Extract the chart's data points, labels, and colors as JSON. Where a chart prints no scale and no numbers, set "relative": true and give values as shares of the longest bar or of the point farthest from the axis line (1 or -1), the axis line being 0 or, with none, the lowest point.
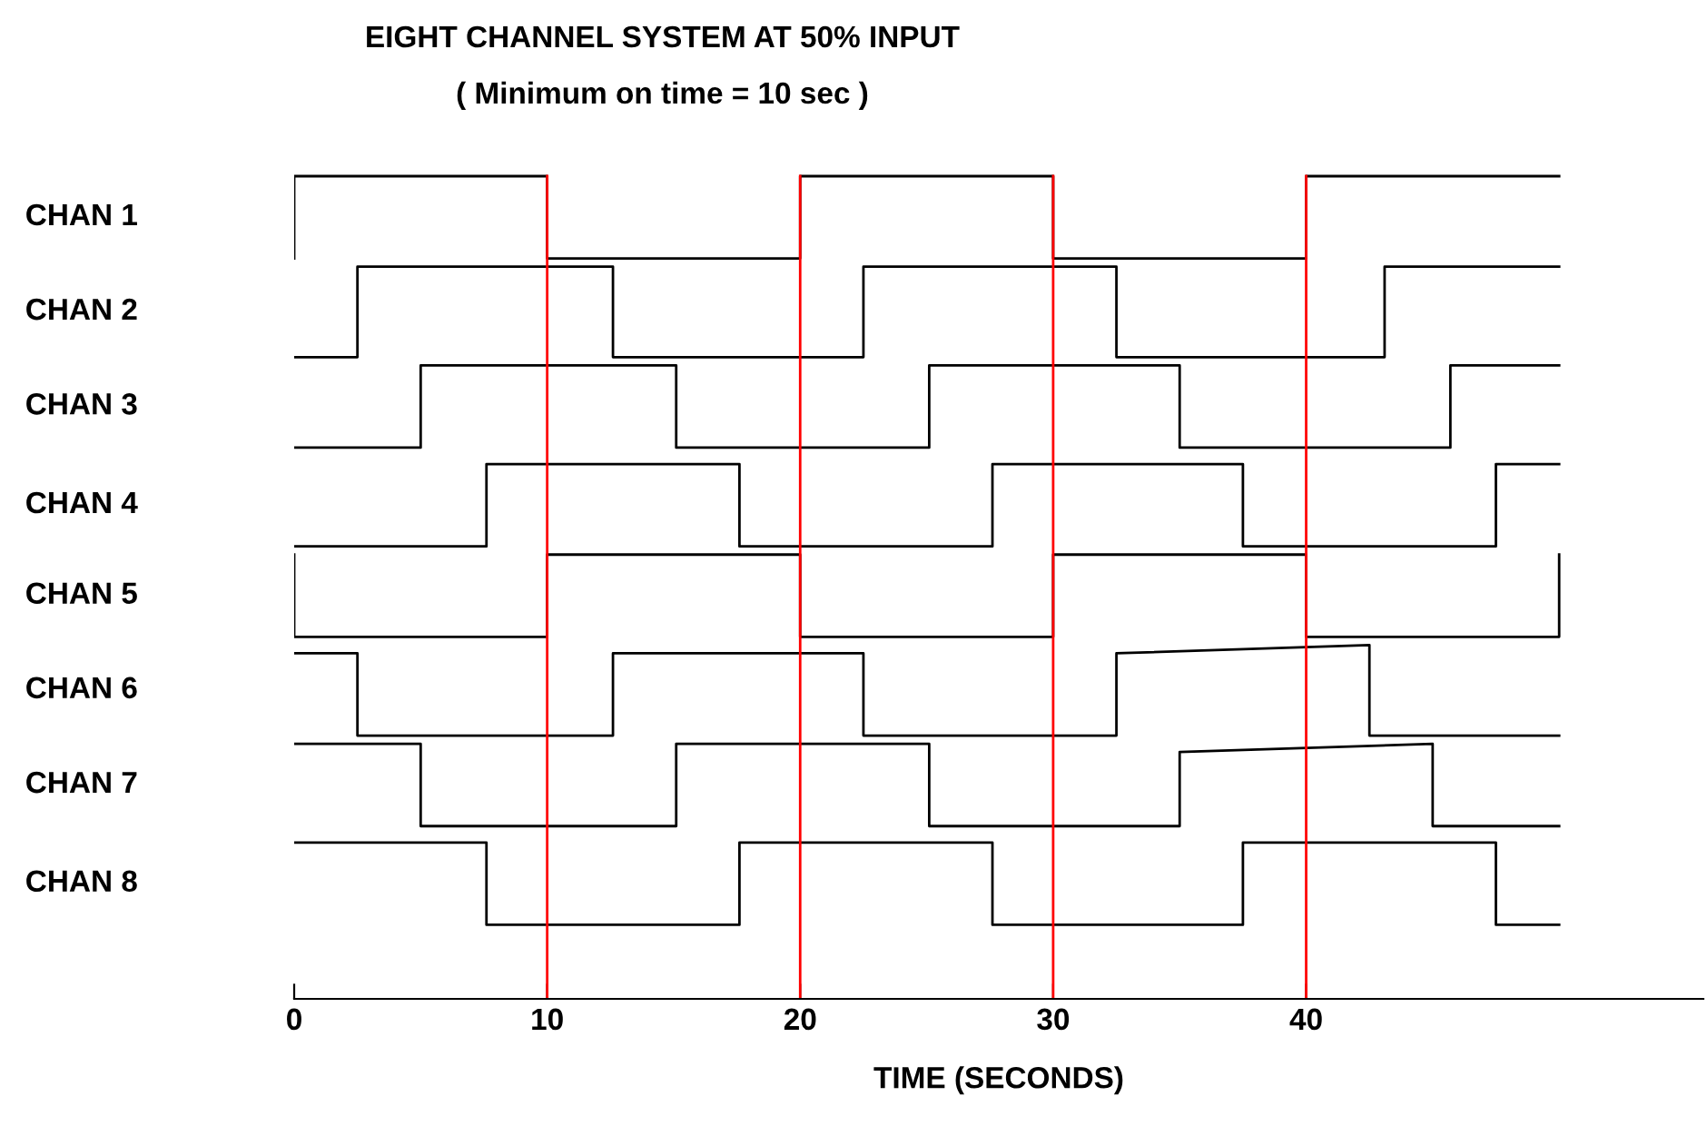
{
  "chart_data": {
    "type": "line",
    "relative": true,
    "title": "EIGHT CHANNEL SYSTEM AT 50% INPUT",
    "subtitle": "( Minimum on time = 10 sec )",
    "xlabel": "TIME (SECONDS)",
    "annotations": [
      "CHAN 1",
      "CHAN 2",
      "CHAN 3",
      "CHAN 4",
      "CHAN 5",
      "CHAN 6",
      "CHAN 7",
      "CHAN 8"
    ],
    "xlim": [
      0,
      55.7
    ],
    "xticks": [
      0,
      10,
      20,
      30,
      40
    ],
    "grid": false,
    "legend": false,
    "marker": "none",
    "line_style": "solid",
    "ref_lines": [
      {
        "axis": "x",
        "value": 10,
        "color": "#ff0000"
      },
      {
        "axis": "x",
        "value": 20,
        "color": "#ff0000"
      },
      {
        "axis": "x",
        "value": 30,
        "color": "#ff0000"
      },
      {
        "axis": "x",
        "value": 40,
        "color": "#ff0000"
      }
    ],
    "series": [
      {
        "color": "#000000",
        "x": [
          0,
          0,
          10,
          10,
          20,
          20,
          30,
          30,
          40,
          40,
          50
        ],
        "values": [
          0.9,
          1,
          1,
          0.9,
          0.9,
          1,
          1,
          0.9,
          0.9,
          1,
          1
        ]
      },
      {
        "color": "#000000",
        "x": [
          0,
          2.5,
          2.5,
          12.6,
          12.6,
          22.5,
          22.5,
          32.5,
          32.5,
          43.1,
          43.1,
          50
        ],
        "values": [
          0.78,
          0.78,
          0.89,
          0.89,
          0.78,
          0.78,
          0.89,
          0.89,
          0.78,
          0.78,
          0.89,
          0.89
        ]
      },
      {
        "color": "#000000",
        "x": [
          0,
          5.0,
          5.0,
          15.1,
          15.1,
          25.1,
          25.1,
          35.0,
          35.0,
          45.7,
          45.7,
          50
        ],
        "values": [
          0.67,
          0.67,
          0.77,
          0.77,
          0.67,
          0.67,
          0.77,
          0.77,
          0.67,
          0.67,
          0.77,
          0.77
        ]
      },
      {
        "color": "#000000",
        "x": [
          0,
          7.6,
          7.6,
          17.6,
          17.6,
          27.6,
          27.6,
          37.5,
          37.5,
          47.5,
          47.5,
          50
        ],
        "values": [
          0.55,
          0.55,
          0.65,
          0.65,
          0.55,
          0.55,
          0.65,
          0.65,
          0.55,
          0.55,
          0.65,
          0.65
        ]
      },
      {
        "color": "#000000",
        "x": [
          0,
          0,
          10,
          10,
          20,
          20,
          30,
          30,
          40,
          40,
          50,
          50
        ],
        "values": [
          0.54,
          0.44,
          0.44,
          0.54,
          0.54,
          0.44,
          0.44,
          0.54,
          0.54,
          0.44,
          0.44,
          0.54
        ]
      },
      {
        "color": "#000000",
        "x": [
          0,
          2.5,
          2.5,
          12.6,
          12.6,
          22.5,
          22.5,
          32.5,
          32.5,
          42.5,
          42.5,
          50
        ],
        "values": [
          0.42,
          0.42,
          0.32,
          0.32,
          0.42,
          0.42,
          0.32,
          0.32,
          0.42,
          0.43,
          0.32,
          0.32
        ]
      },
      {
        "color": "#000000",
        "x": [
          0,
          5.0,
          5.0,
          15.1,
          15.1,
          25.1,
          25.1,
          35.0,
          35.0,
          45.0,
          45.0,
          50
        ],
        "values": [
          0.31,
          0.31,
          0.21,
          0.21,
          0.31,
          0.31,
          0.21,
          0.21,
          0.3,
          0.31,
          0.21,
          0.21
        ]
      },
      {
        "color": "#000000",
        "x": [
          0,
          7.6,
          7.6,
          17.6,
          17.6,
          27.6,
          27.6,
          37.5,
          37.5,
          47.5,
          47.5,
          50
        ],
        "values": [
          0.19,
          0.19,
          0.09,
          0.09,
          0.19,
          0.19,
          0.09,
          0.09,
          0.19,
          0.19,
          0.09,
          0.09
        ]
      }
    ]
  }
}
